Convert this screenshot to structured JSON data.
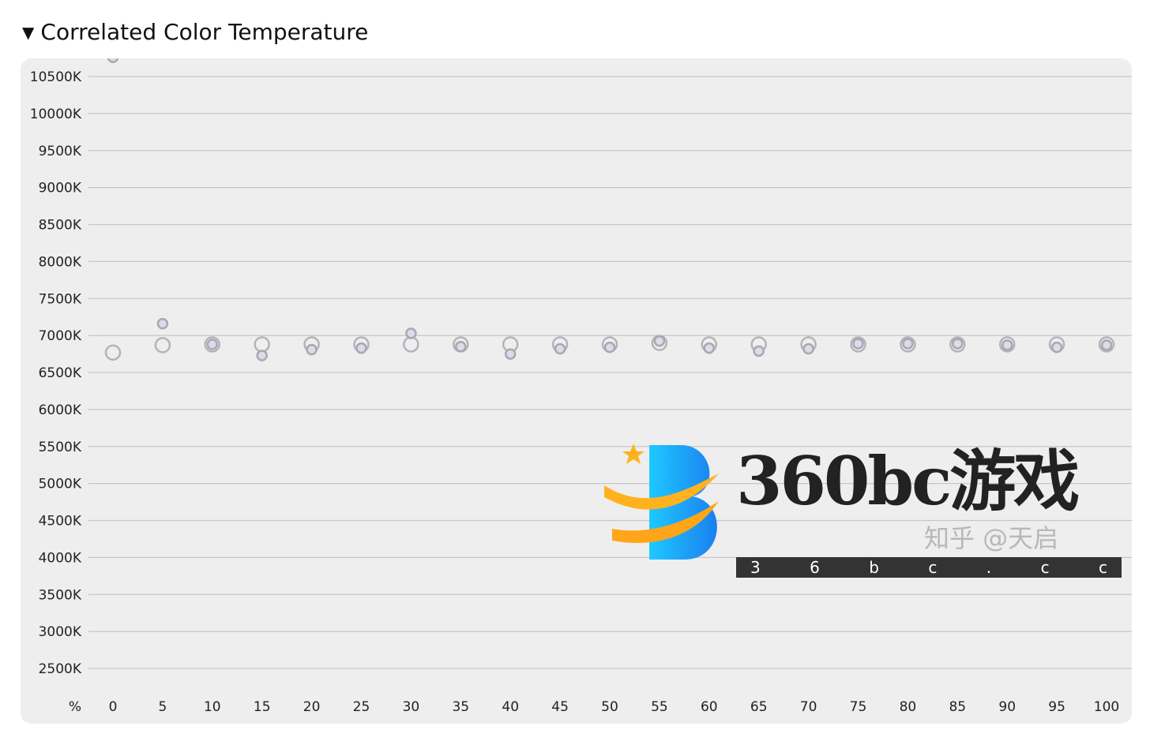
{
  "section": {
    "title": "Correlated Color Temperature",
    "collapse_icon": "triangle-down-icon"
  },
  "chart_data": {
    "type": "scatter",
    "title": "",
    "xlabel": "%",
    "ylabel": "",
    "x_ticks": [
      0,
      5,
      10,
      15,
      20,
      25,
      30,
      35,
      40,
      45,
      50,
      55,
      60,
      65,
      70,
      75,
      80,
      85,
      90,
      95,
      100
    ],
    "y_ticks": [
      2500,
      3000,
      3500,
      4000,
      4500,
      5000,
      5500,
      6000,
      6500,
      7000,
      7500,
      8000,
      8500,
      9000,
      9500,
      10000,
      10500
    ],
    "y_tick_suffix": "K",
    "ylim": [
      2000,
      10750
    ],
    "xlim": [
      0,
      100
    ],
    "grid": true,
    "background": "#eeeeee",
    "series": [
      {
        "style": "hollow-large",
        "stroke": "#b4b4b8",
        "fill": "none",
        "x": [
          0,
          5,
          10,
          15,
          20,
          25,
          30,
          35,
          40,
          45,
          50,
          55,
          60,
          65,
          70,
          75,
          80,
          85,
          90,
          95,
          100
        ],
        "y": [
          6770,
          6870,
          6880,
          6880,
          6880,
          6880,
          6880,
          6880,
          6880,
          6880,
          6880,
          6900,
          6880,
          6880,
          6880,
          6880,
          6880,
          6880,
          6880,
          6880,
          6880
        ]
      },
      {
        "style": "filled-small",
        "stroke": "#a8a8b4",
        "fill": "#dcdce8",
        "x": [
          0,
          5,
          10,
          15,
          20,
          25,
          30,
          35,
          40,
          45,
          50,
          55,
          60,
          65,
          70,
          75,
          80,
          85,
          90,
          95,
          100
        ],
        "y": [
          10760,
          7160,
          6880,
          6730,
          6810,
          6830,
          7030,
          6850,
          6750,
          6820,
          6840,
          6925,
          6830,
          6790,
          6820,
          6890,
          6890,
          6890,
          6870,
          6840,
          6870
        ]
      }
    ]
  },
  "watermark": {
    "brand": "360bc游戏",
    "sub": "知乎 @天启",
    "bar": [
      "3",
      "6",
      "b",
      "c",
      ".",
      "c",
      "c"
    ]
  }
}
